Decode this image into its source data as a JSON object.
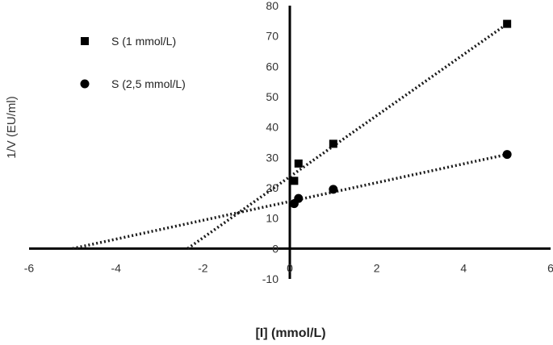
{
  "chart_data": {
    "type": "scatter",
    "title": "",
    "xlabel": "[I] (mmol/L)",
    "ylabel": "1/V (EU/ml)",
    "xlim": [
      -6,
      6
    ],
    "ylim": [
      -10,
      80
    ],
    "x_ticks": [
      -6,
      -4,
      -2,
      0,
      2,
      4,
      6
    ],
    "y_ticks": [
      -10,
      0,
      10,
      20,
      30,
      40,
      50,
      60,
      70,
      80
    ],
    "legend_position": "top-left",
    "grid": false,
    "series": [
      {
        "name": "S (1 mmol/L)",
        "marker": "square",
        "color": "#000000",
        "points": [
          {
            "x": 0.1,
            "y": 22.3
          },
          {
            "x": 0.2,
            "y": 28.0
          },
          {
            "x": 1.0,
            "y": 34.5
          },
          {
            "x": 5.0,
            "y": 74.0
          }
        ],
        "trendline": {
          "x_start": -2.35,
          "y_start": 0,
          "x_end": 5.0,
          "y_end": 74.0,
          "style": "dotted"
        }
      },
      {
        "name": "S (2,5 mmol/L)",
        "marker": "circle",
        "color": "#000000",
        "points": [
          {
            "x": 0.1,
            "y": 14.8
          },
          {
            "x": 0.2,
            "y": 16.5
          },
          {
            "x": 1.0,
            "y": 19.5
          },
          {
            "x": 5.0,
            "y": 31.0
          }
        ],
        "trendline": {
          "x_start": -5.0,
          "y_start": 0,
          "x_end": 5.0,
          "y_end": 31.0,
          "style": "dotted"
        }
      }
    ]
  }
}
